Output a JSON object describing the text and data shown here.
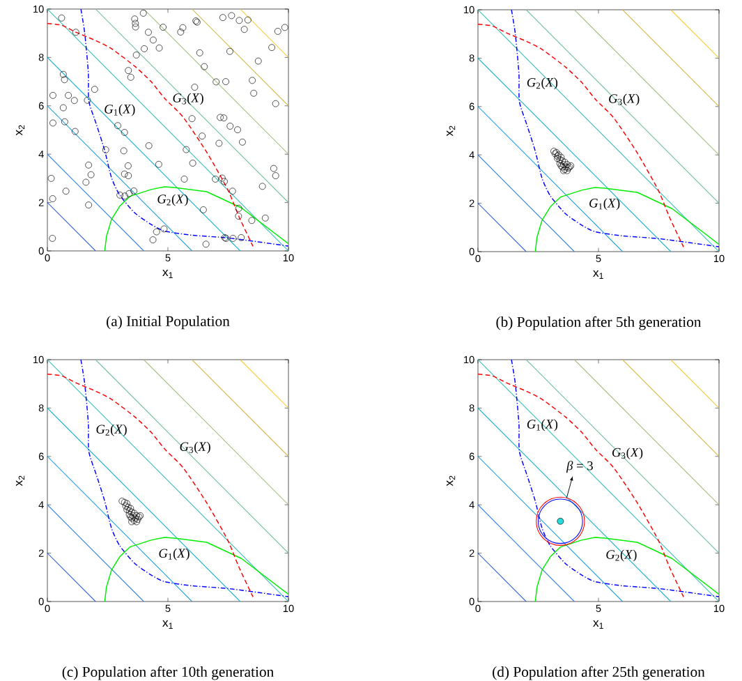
{
  "chart_data": [
    {
      "type": "scatter",
      "title": "(a) Initial Population",
      "xlabel": "x$_{1}$",
      "ylabel": "x$_{2}$",
      "xlim": [
        0,
        10
      ],
      "ylim": [
        0,
        10
      ],
      "xticks": [
        0,
        5,
        10
      ],
      "yticks": [
        0,
        2,
        4,
        6,
        8,
        10
      ],
      "series": [
        {
          "type": "line",
          "color": "#2a5ad8",
          "x": [
            0,
            2
          ],
          "values": [
            2,
            0
          ]
        },
        {
          "type": "line",
          "color": "#2b7de8",
          "x": [
            0,
            4
          ],
          "values": [
            4,
            0
          ]
        },
        {
          "type": "line",
          "color": "#1a9ce0",
          "x": [
            0,
            6
          ],
          "values": [
            6,
            0
          ]
        },
        {
          "type": "line",
          "color": "#12b0d0",
          "x": [
            0,
            8
          ],
          "values": [
            8,
            0
          ]
        },
        {
          "type": "line",
          "color": "#35bcb8",
          "x": [
            0,
            10
          ],
          "values": [
            10,
            0
          ]
        },
        {
          "type": "line",
          "color": "#6cbf98",
          "x": [
            2,
            10
          ],
          "values": [
            10,
            2
          ]
        },
        {
          "type": "line",
          "color": "#a2bd78",
          "x": [
            4,
            10
          ],
          "values": [
            10,
            4
          ]
        },
        {
          "type": "line",
          "color": "#d8b84a",
          "x": [
            6,
            10
          ],
          "values": [
            10,
            6
          ]
        },
        {
          "type": "line",
          "color": "#f8c82c",
          "x": [
            8,
            10
          ],
          "values": [
            10,
            8
          ]
        },
        {
          "type": "line",
          "color": "#0000ff",
          "line_style": "dashdot",
          "x": [
            1.39,
            1.55,
            1.7,
            1.72,
            2.03,
            2.37,
            2.66,
            3.0,
            3.62,
            4.3,
            4.87,
            6.0,
            7.57,
            10
          ],
          "values": [
            10,
            9.0,
            7.35,
            6.2,
            5.24,
            4.18,
            3.03,
            2.31,
            1.58,
            1.1,
            0.82,
            0.65,
            0.53,
            0.2
          ]
        },
        {
          "type": "line",
          "color": "#00ee00",
          "x": [
            2.38,
            2.45,
            2.66,
            3.0,
            3.43,
            4.3,
            4.85,
            5.26,
            6.61,
            8.05,
            10
          ],
          "values": [
            0,
            0.6,
            1.3,
            1.85,
            2.26,
            2.54,
            2.65,
            2.62,
            2.45,
            1.78,
            0.3
          ]
        },
        {
          "type": "line",
          "color": "#ff0000",
          "line_style": "dashed",
          "x": [
            0,
            0.6,
            1.21,
            2.0,
            2.66,
            3.62,
            4.3,
            4.88,
            5.64,
            6.61,
            7.48,
            7.96,
            8.53
          ],
          "values": [
            9.4,
            9.33,
            9.03,
            8.7,
            8.36,
            7.64,
            7.0,
            6.29,
            5.52,
            4.08,
            2.54,
            1.39,
            0.19
          ]
        },
        {
          "type": "scatter",
          "color": "#000000",
          "marker": "circle",
          "x": [
            0.59,
            1.18,
            0.66,
            0.71,
            0.23,
            0.87,
            1.12,
            1.66,
            1.96,
            0.66,
            0.23,
            0.72,
            1.15,
            2.92,
            3.2,
            4.21,
            2.42,
            3.17,
            4.62,
            1.71,
            3.35,
            1.81,
            3.2,
            3.36,
            0.16,
            1.6,
            0.77,
            0.22,
            1.71,
            3.01,
            3.21,
            3.39,
            3.59,
            0.21,
            4.38,
            4.53,
            4.84,
            3.98,
            3.62,
            3.65,
            3.66,
            4.19,
            4.8,
            4.39,
            4.02,
            4.64,
            3.69,
            3.36,
            3.46,
            5.62,
            5.53,
            6.16,
            6.21,
            7.28,
            7.64,
            7.96,
            8.32,
            8.17,
            9.56,
            9.85,
            6.32,
            6.51,
            7.57,
            9.31,
            8.75,
            7.0,
            7.4,
            8.5,
            8.56,
            6.11,
            9.47,
            6.0,
            7.17,
            7.32,
            7.58,
            7.89,
            6.42,
            7.12,
            8.09,
            5.76,
            6.03,
            9.39,
            9.47,
            5.68,
            6.97,
            7.25,
            7.34,
            7.68,
            8.92,
            6.47,
            7.94,
            7.93,
            8.48,
            9.04,
            7.36,
            7.41,
            7.7,
            8.04,
            6.58
          ],
          "values": [
            9.63,
            9.04,
            7.3,
            7.08,
            6.43,
            6.43,
            6.22,
            6.23,
            6.68,
            5.92,
            5.29,
            5.34,
            4.94,
            5.18,
            4.9,
            4.35,
            4.18,
            4.14,
            3.58,
            3.55,
            3.52,
            3.15,
            3.18,
            3.11,
            3.0,
            2.84,
            2.47,
            2.16,
            1.9,
            2.31,
            2.27,
            2.37,
            2.48,
            0.52,
            0.46,
            0.79,
            0.91,
            9.83,
            9.59,
            9.41,
            9.26,
            9.04,
            9.25,
            8.72,
            8.36,
            8.39,
            8.1,
            7.46,
            7.18,
            9.23,
            9.05,
            9.51,
            9.46,
            9.65,
            9.73,
            9.53,
            9.55,
            9.16,
            9.08,
            9.24,
            8.19,
            7.62,
            8.25,
            8.41,
            7.85,
            6.99,
            7.0,
            7.05,
            6.52,
            6.77,
            6.09,
            5.47,
            5.52,
            5.5,
            5.16,
            5.01,
            4.75,
            4.45,
            4.5,
            4.19,
            3.63,
            3.41,
            3.11,
            2.97,
            2.97,
            3.01,
            2.87,
            2.47,
            2.67,
            1.7,
            1.76,
            1.44,
            1.26,
            1.36,
            0.55,
            0.52,
            0.52,
            0.55,
            0.28
          ]
        }
      ],
      "annotations": [
        "*G*$_{1}$(*X*)",
        "*G*$_{3}$(*X*)",
        "*G*$_{2}$(*X*)"
      ]
    },
    {
      "type": "scatter",
      "title": "(b) Population after 5th generation",
      "xlabel": "x$_{1}$",
      "ylabel": "x$_{2}$",
      "xlim": [
        0,
        10
      ],
      "ylim": [
        0,
        10
      ],
      "xticks": [
        0,
        5,
        10
      ],
      "yticks": [
        0,
        2,
        4,
        6,
        8,
        10
      ],
      "series": [
        {
          "type": "line",
          "color": "#2a5ad8",
          "x": [
            0,
            2
          ],
          "values": [
            2,
            0
          ]
        },
        {
          "type": "line",
          "color": "#2b7de8",
          "x": [
            0,
            4
          ],
          "values": [
            4,
            0
          ]
        },
        {
          "type": "line",
          "color": "#1a9ce0",
          "x": [
            0,
            6
          ],
          "values": [
            6,
            0
          ]
        },
        {
          "type": "line",
          "color": "#12b0d0",
          "x": [
            0,
            8
          ],
          "values": [
            8,
            0
          ]
        },
        {
          "type": "line",
          "color": "#35bcb8",
          "x": [
            0,
            10
          ],
          "values": [
            10,
            0
          ]
        },
        {
          "type": "line",
          "color": "#6cbf98",
          "x": [
            2,
            10
          ],
          "values": [
            10,
            2
          ]
        },
        {
          "type": "line",
          "color": "#a2bd78",
          "x": [
            4,
            10
          ],
          "values": [
            10,
            4
          ]
        },
        {
          "type": "line",
          "color": "#d8b84a",
          "x": [
            6,
            10
          ],
          "values": [
            10,
            6
          ]
        },
        {
          "type": "line",
          "color": "#f8c82c",
          "x": [
            8,
            10
          ],
          "values": [
            10,
            8
          ]
        },
        {
          "type": "line",
          "color": "#0000ff",
          "line_style": "dashdot",
          "x": [
            1.39,
            1.55,
            1.7,
            1.72,
            2.03,
            2.37,
            2.66,
            3.0,
            3.62,
            4.3,
            4.87,
            6.0,
            7.57,
            10
          ],
          "values": [
            10,
            9.0,
            7.35,
            6.2,
            5.24,
            4.18,
            3.03,
            2.31,
            1.58,
            1.1,
            0.82,
            0.65,
            0.53,
            0.2
          ]
        },
        {
          "type": "line",
          "color": "#00ee00",
          "x": [
            2.38,
            2.45,
            2.66,
            3.0,
            3.43,
            4.3,
            4.85,
            5.26,
            6.61,
            8.05,
            10
          ],
          "values": [
            0,
            0.6,
            1.3,
            1.85,
            2.26,
            2.54,
            2.65,
            2.62,
            2.45,
            1.78,
            0.3
          ]
        },
        {
          "type": "line",
          "color": "#ff0000",
          "line_style": "dashed",
          "x": [
            0,
            0.6,
            1.21,
            2.0,
            2.66,
            3.62,
            4.3,
            4.88,
            5.64,
            6.61,
            7.48,
            7.96,
            8.53
          ],
          "values": [
            9.4,
            9.33,
            9.03,
            8.7,
            8.36,
            7.64,
            7.0,
            6.29,
            5.52,
            4.08,
            2.54,
            1.39,
            0.19
          ]
        },
        {
          "type": "scatter",
          "color": "#000000",
          "marker": "circle",
          "x": [
            3.15,
            3.2,
            3.25,
            3.3,
            3.35,
            3.3,
            3.4,
            3.45,
            3.5,
            3.4,
            3.55,
            3.6,
            3.5,
            3.65,
            3.7,
            3.6,
            3.75,
            3.8,
            3.55,
            3.7,
            3.85,
            3.45
          ],
          "values": [
            4.15,
            4.05,
            4.1,
            3.95,
            4.0,
            3.85,
            3.8,
            3.9,
            3.75,
            3.65,
            3.6,
            3.7,
            3.5,
            3.5,
            3.6,
            3.4,
            3.45,
            3.5,
            3.35,
            3.35,
            3.55,
            3.55
          ]
        }
      ],
      "annotations": [
        "*G*$_{2}$(*X*)",
        "*G*$_{3}$(*X*)",
        "*G*$_{1}$(*X*)"
      ]
    },
    {
      "type": "scatter",
      "title": "(c) Population after 10th generation",
      "xlabel": "x$_{1}$",
      "ylabel": "x$_{2}$",
      "xlim": [
        0,
        10
      ],
      "ylim": [
        0,
        10
      ],
      "xticks": [
        0,
        5,
        10
      ],
      "yticks": [
        0,
        2,
        4,
        6,
        8,
        10
      ],
      "series": [
        {
          "type": "line",
          "color": "#2a5ad8",
          "x": [
            0,
            2
          ],
          "values": [
            2,
            0
          ]
        },
        {
          "type": "line",
          "color": "#2b7de8",
          "x": [
            0,
            4
          ],
          "values": [
            4,
            0
          ]
        },
        {
          "type": "line",
          "color": "#1a9ce0",
          "x": [
            0,
            6
          ],
          "values": [
            6,
            0
          ]
        },
        {
          "type": "line",
          "color": "#12b0d0",
          "x": [
            0,
            8
          ],
          "values": [
            8,
            0
          ]
        },
        {
          "type": "line",
          "color": "#35bcb8",
          "x": [
            0,
            10
          ],
          "values": [
            10,
            0
          ]
        },
        {
          "type": "line",
          "color": "#6cbf98",
          "x": [
            2,
            10
          ],
          "values": [
            10,
            2
          ]
        },
        {
          "type": "line",
          "color": "#a2bd78",
          "x": [
            4,
            10
          ],
          "values": [
            10,
            4
          ]
        },
        {
          "type": "line",
          "color": "#d8b84a",
          "x": [
            6,
            10
          ],
          "values": [
            10,
            6
          ]
        },
        {
          "type": "line",
          "color": "#f8c82c",
          "x": [
            8,
            10
          ],
          "values": [
            10,
            8
          ]
        },
        {
          "type": "line",
          "color": "#0000ff",
          "line_style": "dashdot",
          "x": [
            1.39,
            1.55,
            1.7,
            1.72,
            2.03,
            2.37,
            2.66,
            3.0,
            3.62,
            4.3,
            4.87,
            6.0,
            7.57,
            10
          ],
          "values": [
            10,
            9.0,
            7.35,
            6.2,
            5.24,
            4.18,
            3.03,
            2.31,
            1.58,
            1.1,
            0.82,
            0.65,
            0.53,
            0.2
          ]
        },
        {
          "type": "line",
          "color": "#00ee00",
          "x": [
            2.38,
            2.45,
            2.66,
            3.0,
            3.43,
            4.3,
            4.85,
            5.26,
            6.61,
            8.05,
            10
          ],
          "values": [
            0,
            0.6,
            1.3,
            1.85,
            2.26,
            2.54,
            2.65,
            2.62,
            2.45,
            1.78,
            0.3
          ]
        },
        {
          "type": "line",
          "color": "#ff0000",
          "line_style": "dashed",
          "x": [
            0,
            0.6,
            1.21,
            2.0,
            2.66,
            3.62,
            4.3,
            4.88,
            5.64,
            6.61,
            7.48,
            7.96,
            8.53
          ],
          "values": [
            9.4,
            9.33,
            9.03,
            8.7,
            8.36,
            7.64,
            7.0,
            6.29,
            5.52,
            4.08,
            2.54,
            1.39,
            0.19
          ]
        },
        {
          "type": "scatter",
          "color": "#000000",
          "marker": "circle",
          "x": [
            3.1,
            3.2,
            3.25,
            3.3,
            3.35,
            3.3,
            3.4,
            3.45,
            3.5,
            3.4,
            3.55,
            3.6,
            3.5,
            3.65,
            3.7,
            3.6,
            3.75,
            3.8,
            3.5,
            3.7,
            3.85,
            3.45
          ],
          "values": [
            4.15,
            4.1,
            3.95,
            4.05,
            3.9,
            3.8,
            3.75,
            3.85,
            3.7,
            3.6,
            3.55,
            3.65,
            3.45,
            3.45,
            3.55,
            3.35,
            3.4,
            3.5,
            3.3,
            3.3,
            3.55,
            3.5
          ]
        }
      ],
      "annotations": [
        "*G*$_{2}$(*X*)",
        "*G*$_{3}$(*X*)",
        "*G*$_{1}$(*X*)"
      ]
    },
    {
      "type": "scatter",
      "title": "(d) Population after 25th generation",
      "xlabel": "x$_{1}$",
      "ylabel": "x$_{2}$",
      "xlim": [
        0,
        10
      ],
      "ylim": [
        0,
        10
      ],
      "xticks": [
        0,
        5,
        10
      ],
      "yticks": [
        0,
        2,
        4,
        6,
        8,
        10
      ],
      "series": [
        {
          "type": "line",
          "color": "#2a5ad8",
          "x": [
            0,
            2
          ],
          "values": [
            2,
            0
          ]
        },
        {
          "type": "line",
          "color": "#2b7de8",
          "x": [
            0,
            4
          ],
          "values": [
            4,
            0
          ]
        },
        {
          "type": "line",
          "color": "#1a9ce0",
          "x": [
            0,
            6
          ],
          "values": [
            6,
            0
          ]
        },
        {
          "type": "line",
          "color": "#12b0d0",
          "x": [
            0,
            8
          ],
          "values": [
            8,
            0
          ]
        },
        {
          "type": "line",
          "color": "#35bcb8",
          "x": [
            0,
            10
          ],
          "values": [
            10,
            0
          ]
        },
        {
          "type": "line",
          "color": "#6cbf98",
          "x": [
            2,
            10
          ],
          "values": [
            10,
            2
          ]
        },
        {
          "type": "line",
          "color": "#a2bd78",
          "x": [
            4,
            10
          ],
          "values": [
            10,
            4
          ]
        },
        {
          "type": "line",
          "color": "#d8b84a",
          "x": [
            6,
            10
          ],
          "values": [
            10,
            6
          ]
        },
        {
          "type": "line",
          "color": "#f8c82c",
          "x": [
            8,
            10
          ],
          "values": [
            10,
            8
          ]
        },
        {
          "type": "line",
          "color": "#0000ff",
          "line_style": "dashdot",
          "x": [
            1.39,
            1.55,
            1.7,
            1.72,
            2.03,
            2.37,
            2.66,
            3.0,
            3.62,
            4.3,
            4.87,
            6.0,
            7.57,
            10
          ],
          "values": [
            10,
            9.0,
            7.35,
            6.2,
            5.24,
            4.18,
            3.03,
            2.31,
            1.58,
            1.1,
            0.82,
            0.65,
            0.53,
            0.2
          ]
        },
        {
          "type": "line",
          "color": "#00ee00",
          "x": [
            2.38,
            2.45,
            2.66,
            3.0,
            3.43,
            4.3,
            4.85,
            5.26,
            6.61,
            8.05,
            10
          ],
          "values": [
            0,
            0.6,
            1.3,
            1.85,
            2.26,
            2.54,
            2.65,
            2.62,
            2.45,
            1.78,
            0.3
          ]
        },
        {
          "type": "line",
          "color": "#ff0000",
          "line_style": "dashed",
          "x": [
            0,
            0.6,
            1.21,
            2.0,
            2.66,
            3.62,
            4.3,
            4.88,
            5.64,
            6.61,
            7.48,
            7.96,
            8.53
          ],
          "values": [
            9.4,
            9.33,
            9.03,
            8.7,
            8.36,
            7.64,
            7.0,
            6.29,
            5.52,
            4.08,
            2.54,
            1.39,
            0.19
          ]
        },
        {
          "type": "scatter",
          "color": "#22dddd",
          "marker": "circle",
          "x": [
            3.42
          ],
          "values": [
            3.32
          ]
        }
      ],
      "annotations": [
        "*G*$_{1}$(*X*)",
        "*G*$_{3}$(*X*)",
        "*G*$_{2}$(*X*)",
        {
          "text": "*β* = 3",
          "x": 3.68,
          "y": 4.29
        }
      ]
    }
  ]
}
